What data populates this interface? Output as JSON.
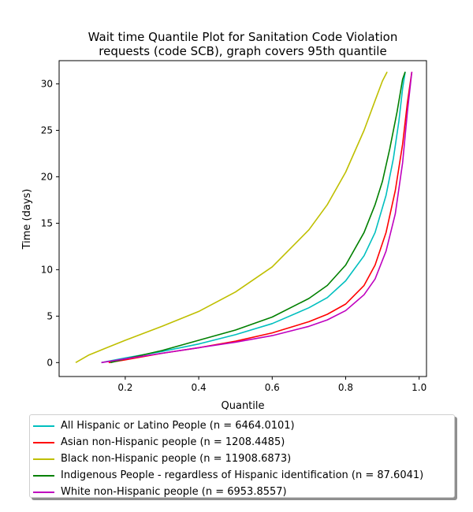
{
  "chart_data": {
    "type": "line",
    "title": "Wait time Quantile Plot for Sanitation Code Violation\nrequests (code SCB), graph covers 95th quantile",
    "xlabel": "Quantile",
    "ylabel": "Time (days)",
    "xlim": [
      0.02,
      1.02
    ],
    "ylim": [
      -1.5,
      32.5
    ],
    "xticks": [
      0.2,
      0.4,
      0.6,
      0.8,
      1.0
    ],
    "xtick_labels": [
      "0.2",
      "0.4",
      "0.6",
      "0.8",
      "1.0"
    ],
    "yticks": [
      0,
      5,
      10,
      15,
      20,
      25,
      30
    ],
    "ytick_labels": [
      "0",
      "5",
      "10",
      "15",
      "20",
      "25",
      "30"
    ],
    "grid": false,
    "legend_position": "below-plot",
    "series": [
      {
        "name": "All Hispanic or Latino People (n = 6464.0101)",
        "color": "#00bfbf",
        "x": [
          0.135,
          0.2,
          0.3,
          0.4,
          0.5,
          0.6,
          0.7,
          0.75,
          0.8,
          0.85,
          0.88,
          0.91,
          0.93,
          0.945,
          0.955,
          0.962
        ],
        "y": [
          0.0,
          0.5,
          1.2,
          2.0,
          3.0,
          4.2,
          5.9,
          7.0,
          8.8,
          11.5,
          14.0,
          18.0,
          22.0,
          26.0,
          29.5,
          31.3
        ]
      },
      {
        "name": "Asian non-Hispanic people (n = 1208.4485)",
        "color": "#ff0000",
        "x": [
          0.155,
          0.2,
          0.3,
          0.4,
          0.5,
          0.6,
          0.7,
          0.75,
          0.8,
          0.85,
          0.88,
          0.91,
          0.935,
          0.955,
          0.968,
          0.98
        ],
        "y": [
          0.0,
          0.3,
          1.0,
          1.6,
          2.3,
          3.2,
          4.4,
          5.2,
          6.3,
          8.3,
          10.5,
          14.0,
          18.5,
          23.5,
          28.0,
          31.3
        ]
      },
      {
        "name": "Black non-Hispanic people (n = 11908.6873)",
        "color": "#bfbf00",
        "x": [
          0.065,
          0.1,
          0.15,
          0.2,
          0.3,
          0.4,
          0.5,
          0.6,
          0.7,
          0.75,
          0.8,
          0.85,
          0.88,
          0.9,
          0.913
        ],
        "y": [
          0.0,
          0.8,
          1.6,
          2.4,
          3.9,
          5.5,
          7.6,
          10.3,
          14.3,
          17.0,
          20.5,
          25.0,
          28.2,
          30.3,
          31.3
        ]
      },
      {
        "name": "Indigenous People - regardless of Hispanic identification (n = 87.6041)",
        "color": "#008000",
        "x": [
          0.16,
          0.2,
          0.3,
          0.4,
          0.5,
          0.6,
          0.7,
          0.75,
          0.8,
          0.85,
          0.88,
          0.9,
          0.92,
          0.94,
          0.955,
          0.962
        ],
        "y": [
          0.0,
          0.4,
          1.3,
          2.4,
          3.5,
          4.9,
          6.9,
          8.3,
          10.5,
          14.0,
          17.0,
          19.5,
          23.0,
          27.0,
          30.5,
          31.3
        ]
      },
      {
        "name": "White non-Hispanic people (n = 6953.8557)",
        "color": "#bf00bf",
        "x": [
          0.135,
          0.2,
          0.3,
          0.4,
          0.5,
          0.6,
          0.7,
          0.75,
          0.8,
          0.85,
          0.88,
          0.91,
          0.935,
          0.955,
          0.968,
          0.98
        ],
        "y": [
          0.0,
          0.4,
          1.0,
          1.6,
          2.2,
          2.9,
          3.9,
          4.6,
          5.6,
          7.3,
          9.0,
          12.0,
          16.0,
          21.5,
          27.0,
          31.3
        ]
      }
    ]
  }
}
